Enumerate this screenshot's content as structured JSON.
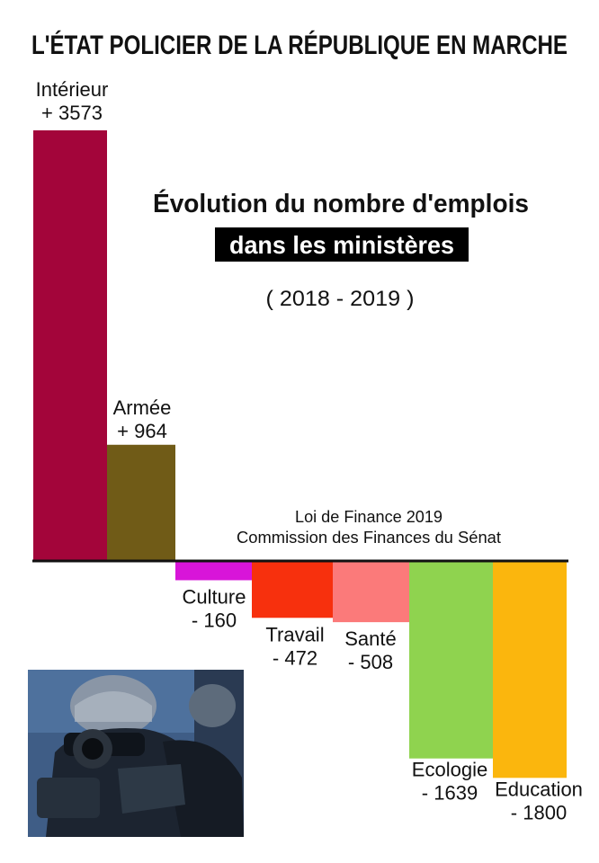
{
  "headline": "L'ÉTAT POLICIER DE LA RÉPUBLIQUE EN MARCHE",
  "subtitle_line1": "Évolution du nombre d'emplois",
  "subtitle_line2": "dans les ministères",
  "period": "( 2018 - 2019 )",
  "source_line1": "Loi de Finance 2019",
  "source_line2": "Commission des Finances du Sénat",
  "chart_data": {
    "type": "bar",
    "title": "Évolution du nombre d'emplois dans les ministères ( 2018 - 2019 )",
    "categories": [
      "Intérieur",
      "Armée",
      "Culture",
      "Travail",
      "Santé",
      "Ecologie",
      "Education"
    ],
    "values": [
      3573,
      964,
      -160,
      -472,
      -508,
      -1639,
      -1800
    ],
    "value_labels": [
      "+ 3573",
      "+ 964",
      "- 160",
      "- 472",
      "- 508",
      "- 1639",
      "- 1800"
    ],
    "colors": [
      "#a3053a",
      "#705b17",
      "#d815d9",
      "#f7300d",
      "#fb7a7a",
      "#8fd34f",
      "#fbb60d"
    ],
    "ylim": [
      -1800,
      3573
    ],
    "grid": false,
    "xlabel": "",
    "ylabel": ""
  },
  "photo": {
    "icon": "riot-police-photo",
    "colors": {
      "background": "#3f5d86",
      "gear": "#1c2430",
      "helmet": "#8a96a6"
    }
  }
}
